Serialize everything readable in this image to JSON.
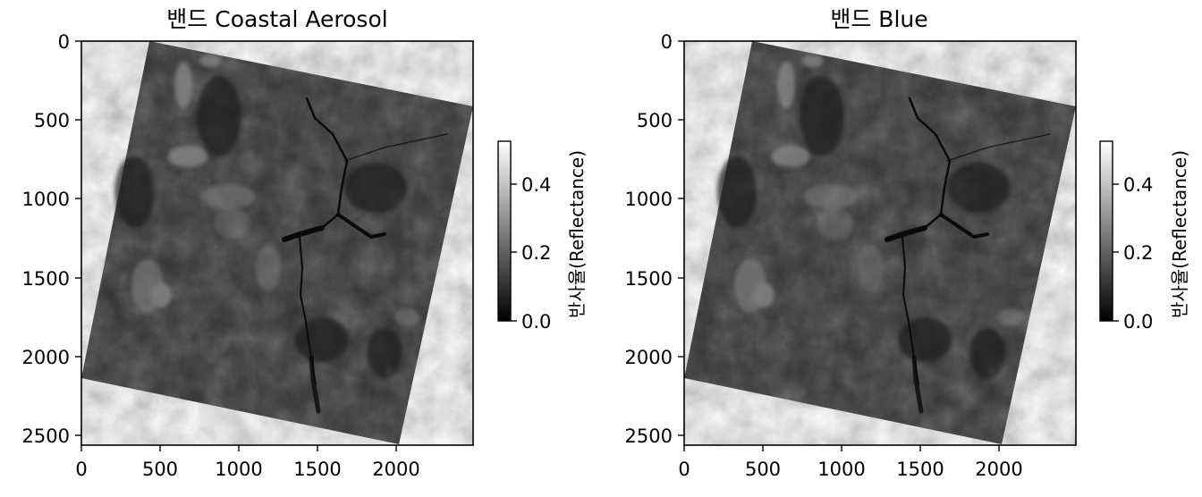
{
  "panels": [
    {
      "title": "밴드 Coastal Aerosol",
      "x_ticks": [
        "0",
        "500",
        "1000",
        "1500",
        "2000"
      ],
      "y_ticks": [
        "0",
        "500",
        "1000",
        "1500",
        "2000",
        "2500"
      ],
      "colorbar": {
        "label": "반사율(Reflectance)",
        "ticks": [
          "0.0",
          "0.2",
          "0.4"
        ]
      }
    },
    {
      "title": "밴드 Blue",
      "x_ticks": [
        "0",
        "500",
        "1000",
        "1500",
        "2000"
      ],
      "y_ticks": [
        "0",
        "500",
        "1000",
        "1500",
        "2000",
        "2500"
      ],
      "colorbar": {
        "label": "반사율(Reflectance)",
        "ticks": [
          "0.0",
          "0.2",
          "0.4"
        ]
      }
    }
  ],
  "colors": {
    "scene_base": "#333333",
    "colormap_low": "#000000",
    "colormap_high": "#ffffff",
    "water": "#0a0a0a",
    "bright_terrain": "#8a8a8a"
  }
}
